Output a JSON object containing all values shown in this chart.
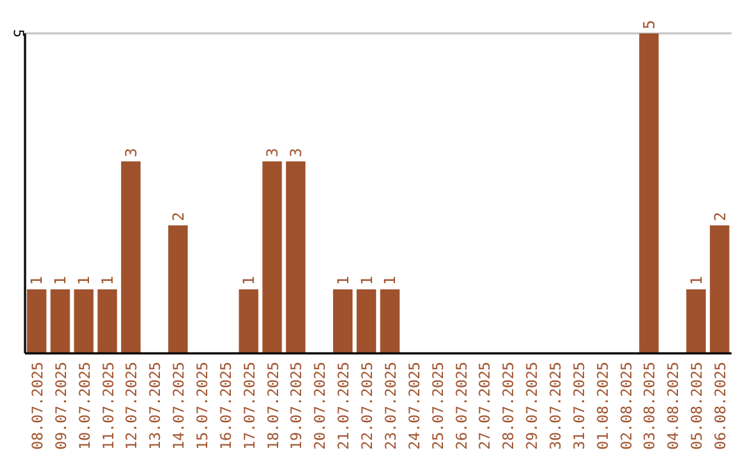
{
  "chart_data": {
    "type": "bar",
    "categories": [
      "08.07.2025",
      "09.07.2025",
      "10.07.2025",
      "11.07.2025",
      "12.07.2025",
      "13.07.2025",
      "14.07.2025",
      "15.07.2025",
      "16.07.2025",
      "17.07.2025",
      "18.07.2025",
      "19.07.2025",
      "20.07.2025",
      "21.07.2025",
      "22.07.2025",
      "23.07.2025",
      "24.07.2025",
      "25.07.2025",
      "26.07.2025",
      "27.07.2025",
      "28.07.2025",
      "29.07.2025",
      "30.07.2025",
      "31.07.2025",
      "01.08.2025",
      "02.08.2025",
      "03.08.2025",
      "04.08.2025",
      "05.08.2025",
      "06.08.2025"
    ],
    "values": [
      1,
      1,
      1,
      1,
      3,
      0,
      2,
      0,
      0,
      1,
      3,
      3,
      0,
      1,
      1,
      1,
      0,
      0,
      0,
      0,
      0,
      0,
      0,
      0,
      0,
      0,
      5,
      0,
      1,
      2
    ],
    "value_labels": [
      "1",
      "1",
      "1",
      "1",
      "3",
      null,
      "2",
      null,
      null,
      "1",
      "3",
      "3",
      null,
      "1",
      "1",
      "1",
      null,
      null,
      null,
      null,
      null,
      null,
      null,
      null,
      null,
      null,
      "5",
      null,
      "1",
      "2"
    ],
    "color": "#a0522d",
    "ylim": [
      0,
      5
    ],
    "yticks": [
      5
    ],
    "grid": "y"
  }
}
